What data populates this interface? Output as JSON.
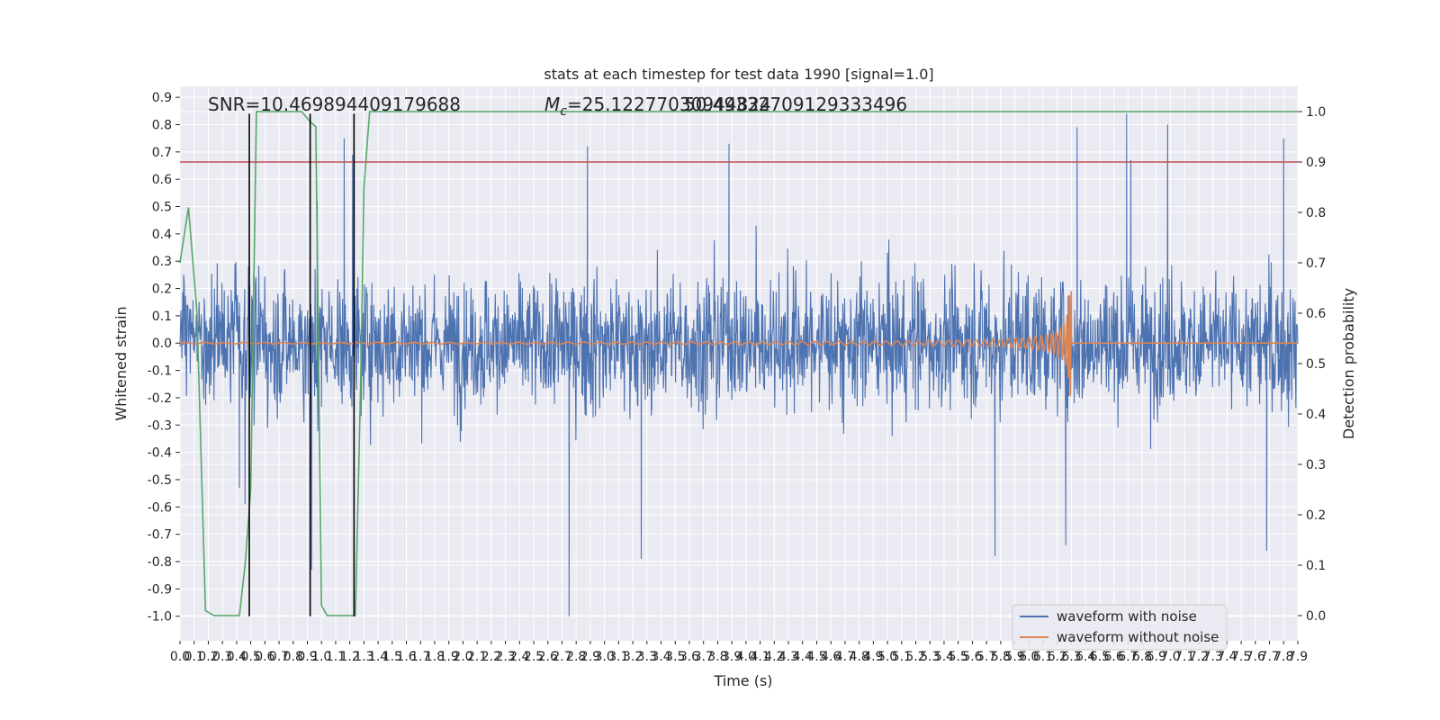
{
  "chart_data": {
    "type": "line",
    "title": "stats at each timestep for test data 1990 [signal=1.0]",
    "xlabel": "Time (s)",
    "ylabel": "Whitened strain",
    "y2label": "Detection probability",
    "xlim": [
      0.0,
      7.9
    ],
    "ylim": [
      -1.09,
      0.94
    ],
    "y2lim": [
      -0.05,
      1.05
    ],
    "x_ticks": [
      "0.0",
      "0.1",
      "0.2",
      "0.3",
      "0.4",
      "0.5",
      "0.6",
      "0.7",
      "0.8",
      "0.9",
      "1.0",
      "1.1",
      "1.2",
      "1.3",
      "1.4",
      "1.5",
      "1.6",
      "1.7",
      "1.8",
      "1.9",
      "2.0",
      "2.1",
      "2.2",
      "2.3",
      "2.4",
      "2.5",
      "2.6",
      "2.7",
      "2.8",
      "2.9",
      "3.0",
      "3.1",
      "3.2",
      "3.3",
      "3.4",
      "3.5",
      "3.6",
      "3.7",
      "3.8",
      "3.9",
      "4.0",
      "4.1",
      "4.2",
      "4.3",
      "4.4",
      "4.5",
      "4.6",
      "4.7",
      "4.8",
      "4.9",
      "5.0",
      "5.1",
      "5.2",
      "5.3",
      "5.4",
      "5.5",
      "5.6",
      "5.7",
      "5.8",
      "5.9",
      "6.0",
      "6.1",
      "6.2",
      "6.3",
      "6.4",
      "6.5",
      "6.6",
      "6.7",
      "6.8",
      "6.9",
      "7.0",
      "7.1",
      "7.2",
      "7.3",
      "7.4",
      "7.5",
      "7.6",
      "7.7",
      "7.8",
      "7.9"
    ],
    "y_ticks": [
      "0.9",
      "0.8",
      "0.7",
      "0.6",
      "0.5",
      "0.4",
      "0.3",
      "0.2",
      "0.1",
      "0.0",
      "-0.1",
      "-0.2",
      "-0.3",
      "-0.4",
      "-0.5",
      "-0.6",
      "-0.7",
      "-0.8",
      "-0.9",
      "-1.0"
    ],
    "y_tick_values": [
      0.9,
      0.8,
      0.7,
      0.6,
      0.5,
      0.4,
      0.3,
      0.2,
      0.1,
      0.0,
      -0.1,
      -0.2,
      -0.3,
      -0.4,
      -0.5,
      -0.6,
      -0.7,
      -0.8,
      -0.9,
      -1.0
    ],
    "y2_ticks": [
      "1.0",
      "0.9",
      "0.8",
      "0.7",
      "0.6",
      "0.5",
      "0.4",
      "0.3",
      "0.2",
      "0.1",
      "0.0"
    ],
    "y2_tick_values": [
      1.0,
      0.9,
      0.8,
      0.7,
      0.6,
      0.5,
      0.4,
      0.3,
      0.2,
      0.1,
      0.0
    ],
    "annotations": {
      "snr": "SNR=10.469894409179688",
      "mc_symbol": "M",
      "mc_sub": "c",
      "mc_text": "=25.12277030944824",
      "overlap_text": "50.49332709129333496"
    },
    "legend": {
      "placement": "lower-right",
      "entries": [
        "waveform with noise",
        "waveform without noise"
      ]
    },
    "series": [
      {
        "name": "waveform with noise",
        "color": "#4c72b0",
        "kind": "noise",
        "amplitude_range": [
          -1.0,
          0.84
        ],
        "peaks": [
          [
            0.42,
            -0.53
          ],
          [
            0.46,
            -0.59
          ],
          [
            0.93,
            -0.83
          ],
          [
            0.97,
            0.52
          ],
          [
            1.16,
            0.75
          ],
          [
            1.22,
            0.69
          ],
          [
            2.75,
            -1.0
          ],
          [
            2.88,
            0.72
          ],
          [
            3.26,
            -0.79
          ],
          [
            3.88,
            0.73
          ],
          [
            5.76,
            -0.78
          ],
          [
            6.26,
            -0.74
          ],
          [
            6.34,
            0.79
          ],
          [
            6.69,
            0.84
          ],
          [
            6.72,
            0.67
          ],
          [
            6.98,
            0.8
          ],
          [
            7.68,
            -0.76
          ],
          [
            7.8,
            0.75
          ]
        ]
      },
      {
        "name": "waveform without noise",
        "color": "#dd8452",
        "kind": "chirp",
        "t_start": 0.0,
        "t_merger": 6.3,
        "peak_amplitude": 0.43,
        "min_amplitude": -0.43
      },
      {
        "name": "",
        "color": "#55a868",
        "axis": "right",
        "x": [
          0.0,
          0.06,
          0.12,
          0.18,
          0.24,
          0.3,
          0.36,
          0.42,
          0.46,
          0.5,
          0.54,
          0.6,
          0.7,
          0.8,
          0.86,
          0.92,
          0.96,
          1.0,
          1.04,
          1.1,
          1.2,
          1.24,
          1.28,
          1.3,
          1.34,
          1.4,
          1.5,
          2.0,
          3.0,
          4.0,
          5.0,
          6.0,
          7.0,
          7.9
        ],
        "values": [
          0.7,
          0.81,
          0.6,
          0.01,
          0.0,
          0.0,
          0.0,
          0.0,
          0.1,
          0.25,
          1.0,
          1.0,
          1.0,
          1.0,
          1.0,
          0.98,
          0.97,
          0.02,
          0.0,
          0.0,
          0.0,
          0.0,
          0.5,
          0.85,
          1.0,
          1.0,
          1.0,
          1.0,
          1.0,
          1.0,
          1.0,
          1.0,
          1.0,
          1.0
        ]
      }
    ],
    "threshold": {
      "value": 0.9,
      "axis": "right",
      "color": "#c44e52"
    },
    "vertical_markers": {
      "x": [
        0.49,
        0.92,
        1.23
      ],
      "color": "#000000",
      "y_range": [
        -1.0,
        0.84
      ]
    }
  }
}
